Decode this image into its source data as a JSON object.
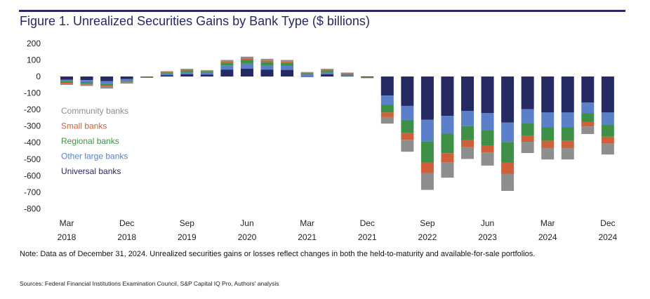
{
  "title": "Figure 1. Unrealized Securities Gains by Bank Type ($ billions)",
  "note": "Note: Data as of December 31, 2024. Unrealized securities gains or losses reflect changes in both the held-to-maturity and available-for-sale portfolios.",
  "sources": "Sources: Federal Financial Institutions Examination Council, S&P Capital IQ Pro, Authors' analysis",
  "colors": {
    "universal": "#252a63",
    "other_large": "#5b7fc9",
    "regional": "#3e9048",
    "small": "#d0603a",
    "community": "#8e8e8e",
    "rule": "#252a63"
  },
  "chart_data": {
    "type": "bar",
    "stacked": true,
    "ylim": [
      -800,
      200
    ],
    "yticks": [
      200,
      100,
      0,
      -100,
      -200,
      -300,
      -400,
      -500,
      -600,
      -700,
      -800
    ],
    "grid": false,
    "legend_position": "left, inside plot below zero",
    "x_tick_labels": [
      {
        "index": 0,
        "line1": "Mar",
        "line2": "2018"
      },
      {
        "index": 3,
        "line1": "Dec",
        "line2": "2018"
      },
      {
        "index": 6,
        "line1": "Sep",
        "line2": "2019"
      },
      {
        "index": 9,
        "line1": "Jun",
        "line2": "2020"
      },
      {
        "index": 12,
        "line1": "Mar",
        "line2": "2021"
      },
      {
        "index": 15,
        "line1": "Dec",
        "line2": "2021"
      },
      {
        "index": 18,
        "line1": "Sep",
        "line2": "2022"
      },
      {
        "index": 21,
        "line1": "Jun",
        "line2": "2023"
      },
      {
        "index": 24,
        "line1": "Mar",
        "line2": "2024"
      },
      {
        "index": 27,
        "line1": "Dec",
        "line2": "2024"
      }
    ],
    "categories": [
      "Q1 2018",
      "Q2 2018",
      "Q3 2018",
      "Q4 2018",
      "Q1 2019",
      "Q2 2019",
      "Q3 2019",
      "Q4 2019",
      "Q1 2020",
      "Q2 2020",
      "Q3 2020",
      "Q4 2020",
      "Q1 2021",
      "Q2 2021",
      "Q3 2021",
      "Q4 2021",
      "Q1 2022",
      "Q2 2022",
      "Q3 2022",
      "Q4 2022",
      "Q1 2023",
      "Q2 2023",
      "Q3 2023",
      "Q4 2023",
      "Q1 2024",
      "Q2 2024",
      "Q3 2024",
      "Q4 2024"
    ],
    "series": [
      {
        "name": "Universal banks",
        "color_key": "universal",
        "values": [
          -20,
          -22,
          -28,
          -16,
          -3,
          8,
          14,
          12,
          42,
          48,
          42,
          40,
          -2,
          14,
          3,
          -5,
          -115,
          -178,
          -262,
          -238,
          -208,
          -222,
          -278,
          -198,
          -218,
          -218,
          -158,
          -218
        ]
      },
      {
        "name": "Other large banks",
        "color_key": "other_large",
        "values": [
          -10,
          -12,
          -16,
          -10,
          -1,
          10,
          12,
          10,
          25,
          30,
          26,
          24,
          12,
          12,
          8,
          0,
          -55,
          -85,
          -130,
          -108,
          -93,
          -103,
          -118,
          -83,
          -88,
          -88,
          -63,
          -73
        ]
      },
      {
        "name": "Regional banks",
        "color_key": "regional",
        "values": [
          -8,
          -9,
          -12,
          -7,
          -1,
          7,
          10,
          9,
          17,
          22,
          20,
          18,
          8,
          10,
          6,
          -2,
          -48,
          -80,
          -130,
          -118,
          -85,
          -93,
          -126,
          -76,
          -83,
          -83,
          -53,
          -73
        ]
      },
      {
        "name": "Small banks",
        "color_key": "small",
        "values": [
          -5,
          -6,
          -7,
          -4,
          -1,
          3,
          5,
          4,
          8,
          10,
          9,
          8,
          3,
          5,
          3,
          -1,
          -28,
          -40,
          -62,
          -57,
          -42,
          -42,
          -68,
          -38,
          -42,
          -42,
          -28,
          -42
        ]
      },
      {
        "name": "Community banks",
        "color_key": "community",
        "values": [
          -8,
          -8,
          -10,
          -6,
          -2,
          4,
          6,
          4,
          8,
          10,
          10,
          10,
          4,
          6,
          4,
          -2,
          -39,
          -72,
          -102,
          -91,
          -71,
          -79,
          -102,
          -68,
          -71,
          -71,
          -46,
          -66
        ]
      }
    ],
    "legend": [
      {
        "label": "Community banks",
        "color_key": "community"
      },
      {
        "label": "Small banks",
        "color_key": "small"
      },
      {
        "label": "Regional banks",
        "color_key": "regional"
      },
      {
        "label": "Other large banks",
        "color_key": "other_large"
      },
      {
        "label": "Universal banks",
        "color_key": "universal"
      }
    ]
  }
}
